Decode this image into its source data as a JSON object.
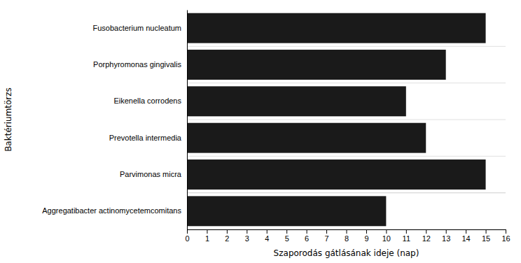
{
  "chart_data": {
    "type": "bar",
    "orientation": "horizontal",
    "categories": [
      "Aggregatibacter actinomycetemcomitans",
      "Parvimonas micra",
      "Prevotella intermedia",
      "Eikenella corrodens",
      "Porphyromonas gingivalis",
      "Fusobacterium nucleatum"
    ],
    "values": [
      10,
      15,
      12,
      11,
      13,
      15
    ],
    "color": "#1a1a1a",
    "xlabel": "Szaporodás gátlásának ideje (nap)",
    "ylabel": "Baktériumtörzs",
    "xlim": [
      0,
      16
    ],
    "xticks": [
      0,
      1,
      2,
      3,
      4,
      5,
      6,
      7,
      8,
      9,
      10,
      11,
      12,
      13,
      14,
      15,
      16
    ]
  }
}
